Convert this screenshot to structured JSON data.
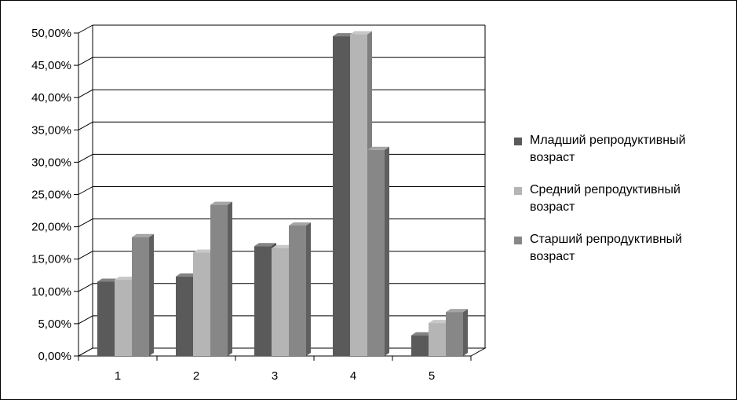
{
  "chart_data": {
    "type": "bar",
    "categories": [
      "1",
      "2",
      "3",
      "4",
      "5"
    ],
    "series": [
      {
        "name": "Младший репродуктивный возраст",
        "values": [
          11.5,
          12.3,
          17.0,
          49.5,
          3.2
        ]
      },
      {
        "name": "Средний репродуктивный возраст",
        "values": [
          11.8,
          16.0,
          16.7,
          49.8,
          5.1
        ]
      },
      {
        "name": "Старший репродуктивный возраст",
        "values": [
          18.4,
          23.4,
          20.2,
          31.9,
          6.8
        ]
      }
    ],
    "ylim": [
      0,
      50
    ],
    "ytick_labels": [
      "0,00%",
      "5,00%",
      "10,00%",
      "15,00%",
      "20,00%",
      "25,00%",
      "30,00%",
      "35,00%",
      "40,00%",
      "45,00%",
      "50,00%"
    ],
    "grid": true,
    "legend_position": "right",
    "colors": [
      "#5a5a5a",
      "#b5b5b5",
      "#878787"
    ],
    "title": "",
    "xlabel": "",
    "ylabel": ""
  }
}
